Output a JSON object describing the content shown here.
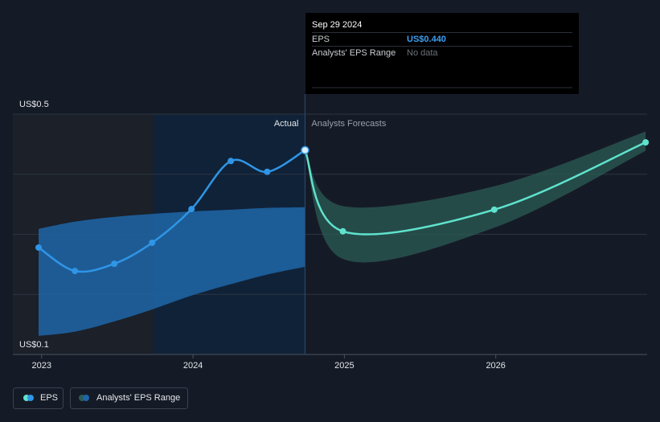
{
  "chart_data": {
    "type": "line",
    "xlim": [
      2022.81,
      2027.0
    ],
    "xticks": [
      2023,
      2024,
      2025,
      2026
    ],
    "ylim": [
      0.1,
      0.5
    ],
    "yticks": [
      {
        "value": 0.1,
        "label": "US$0.1"
      },
      {
        "value": 0.5,
        "label": "US$0.5"
      }
    ],
    "grid_lines": [
      0.2,
      0.3,
      0.4,
      0.5
    ],
    "divider_x": 2024.74,
    "divider_left_label": "Actual",
    "divider_right_label": "Analysts Forecasts",
    "series": [
      {
        "name": "EPS",
        "color": "#2f95e6",
        "forecast_color": "#5fe3cd",
        "x": [
          2022.98,
          2023.22,
          2023.48,
          2023.73,
          2023.99,
          2024.25,
          2024.49,
          2024.74,
          2024.99,
          2025.99,
          2026.99
        ],
        "values": [
          0.278,
          0.239,
          0.251,
          0.286,
          0.342,
          0.422,
          0.404,
          0.44,
          0.305,
          0.341,
          0.453
        ]
      }
    ],
    "range": {
      "name": "Analysts' EPS Range",
      "color": "#1f66a8",
      "forecast_color": "#2b5c56",
      "x": [
        2022.98,
        2023.22,
        2023.48,
        2023.73,
        2023.99,
        2024.25,
        2024.49,
        2024.74
      ],
      "low": [
        0.131,
        0.138,
        0.155,
        0.175,
        0.198,
        0.217,
        0.233,
        0.246
      ],
      "high": [
        0.309,
        0.321,
        0.329,
        0.334,
        0.338,
        0.341,
        0.344,
        0.345
      ],
      "forecast_x": [
        2024.74,
        2024.99,
        2025.99,
        2026.99
      ],
      "forecast_low": [
        0.44,
        0.259,
        0.311,
        0.439
      ],
      "forecast_high": [
        0.44,
        0.347,
        0.38,
        0.471
      ]
    },
    "tooltip": {
      "date": "Sep 29 2024",
      "rows": [
        [
          "EPS",
          "US$0.440"
        ],
        [
          "Analysts' EPS Range",
          "No data"
        ]
      ]
    }
  }
}
